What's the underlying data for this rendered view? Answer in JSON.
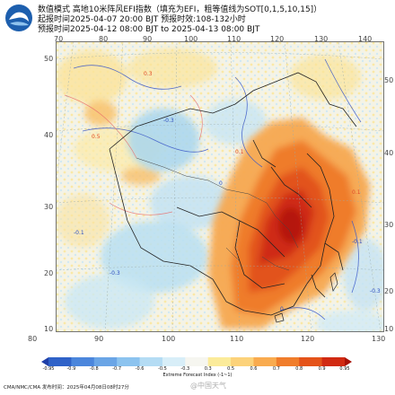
{
  "header": {
    "line1": "数值模式  高地10米阵风EFI指数（填充为EFI，粗等值线为SOT[0,1,5,10,15]）",
    "line2": "起报时间2025-04-07 20:00 BJT  预报时效:108-132小时",
    "line3": "预报时间2025-04-12 08:00 BJT to 2025-04-13 08:00 BJT"
  },
  "axes": {
    "top_lon": [
      "70",
      "80",
      "90",
      "100",
      "110",
      "120",
      "130",
      "140"
    ],
    "bottom_lon": [
      "80",
      "90",
      "100",
      "110",
      "120",
      "130"
    ],
    "left_lat": [
      "50",
      "40",
      "30",
      "20",
      "10"
    ],
    "right_lat": [
      "50",
      "40",
      "30",
      "20",
      "10"
    ]
  },
  "colorbar": {
    "title": "Extreme Forecast Index (-1~1)",
    "labels": [
      "-0.95",
      "-0.9",
      "-0.8",
      "-0.7",
      "-0.6",
      "-0.5",
      "-0.3",
      "0.3",
      "0.5",
      "0.6",
      "0.7",
      "0.8",
      "0.9",
      "0.95"
    ],
    "colors": [
      "#1f3fa8",
      "#2f62c8",
      "#4b86dc",
      "#6aa5e6",
      "#8cc3ef",
      "#b4dcf4",
      "#d8eef8",
      "#f6f6f0",
      "#fbeb9a",
      "#fcd27a",
      "#f9ab4f",
      "#f07d2b",
      "#e4531a",
      "#d12a12",
      "#a81208"
    ]
  },
  "map": {
    "contour_labels": [
      "0.3",
      "0.5",
      "-0.3",
      "-0.1",
      "-0.3",
      "0",
      "0.1",
      "0",
      "-0.1",
      "-0.3",
      "0.1"
    ]
  },
  "footer": {
    "text": "CMA/NMC/CMA 发布时间：2025年04月08日08时27分",
    "watermark": "@中国天气"
  }
}
